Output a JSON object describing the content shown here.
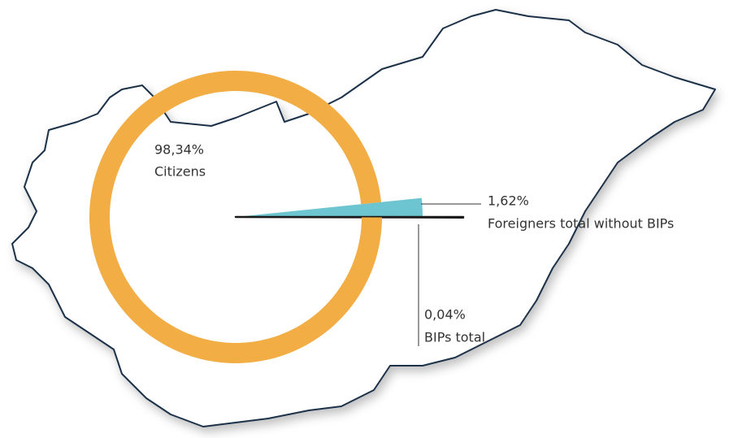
{
  "chart_data": {
    "type": "pie",
    "categories": [
      "Citizens",
      "Foreigners total without BIPs",
      "BIPs total"
    ],
    "values": [
      98.34,
      1.62,
      0.04
    ],
    "value_labels": [
      "98,34%",
      "1,62%",
      "0,04%"
    ],
    "colors": [
      "#f2ad45",
      "#6cc5d0",
      "#1a1a1a"
    ]
  }
}
